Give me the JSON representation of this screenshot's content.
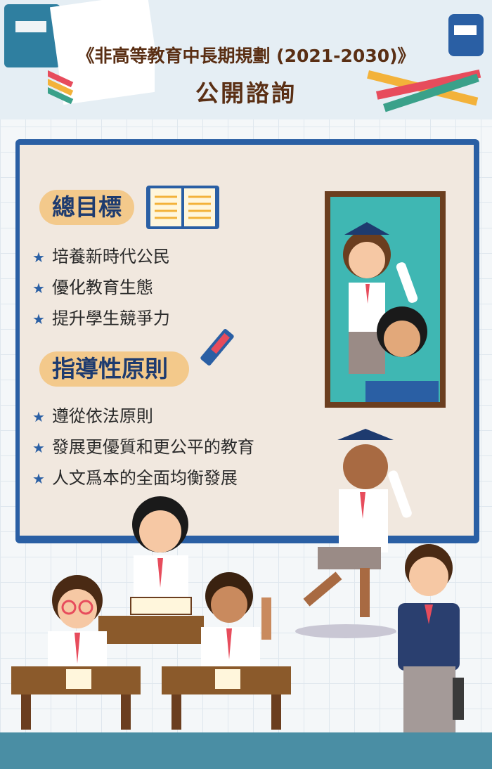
{
  "header": {
    "title_line1": "《非高等教育中長期規劃 (2021-2030)》",
    "title_line2": "公開諮詢"
  },
  "goals": {
    "heading": "總目標",
    "items": [
      "培養新時代公民",
      "優化教育生態",
      "提升學生競爭力"
    ]
  },
  "principles": {
    "heading": "指導性原則",
    "items": [
      "遵從依法原則",
      "發展更優質和更公平的教育",
      "人文爲本的全面均衡發展"
    ]
  },
  "colors": {
    "brand_blue": "#2a5fa4",
    "title_brown": "#5a2f14",
    "pill": "#f3c98b"
  }
}
